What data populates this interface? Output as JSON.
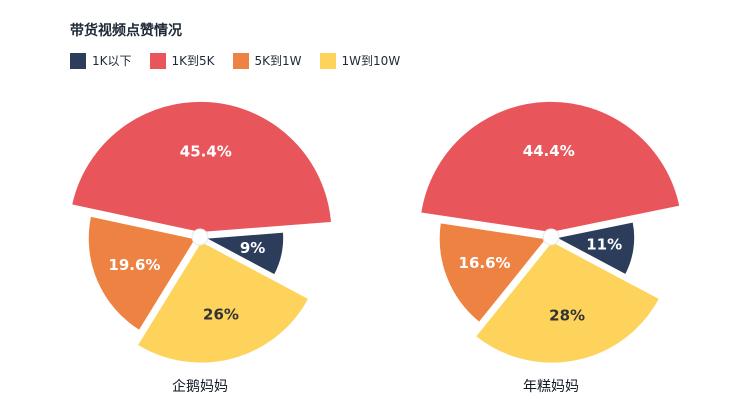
{
  "chart_data": {
    "type": "pie",
    "title": "带货视频点赞情况",
    "legend_position": "top-left",
    "categories": [
      "1K以下",
      "1K到5K",
      "5K到1W",
      "1W到10W"
    ],
    "colors": [
      "#2b3d5a",
      "#e8555a",
      "#ee8242",
      "#fdd35c"
    ],
    "label_colors": [
      "#ffffff",
      "#ffffff",
      "#ffffff",
      "#333333"
    ],
    "series": [
      {
        "name": "企鹅妈妈",
        "values": [
          9,
          45.4,
          19.6,
          26
        ],
        "labels": [
          "9%",
          "45.4%",
          "19.6%",
          "26%"
        ]
      },
      {
        "name": "年糕妈妈",
        "values": [
          11,
          44.4,
          16.6,
          28
        ],
        "labels": [
          "11%",
          "44.4%",
          "16.6%",
          "28%"
        ]
      }
    ]
  }
}
